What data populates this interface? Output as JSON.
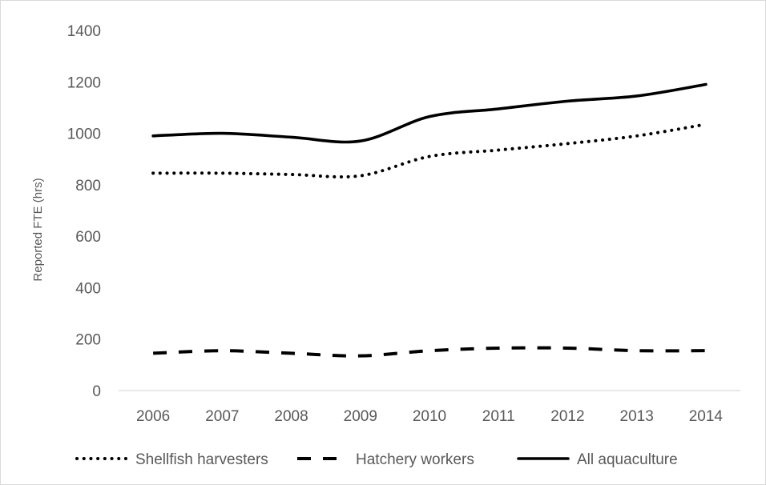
{
  "chart_data": {
    "type": "line",
    "title": "",
    "xlabel": "",
    "ylabel": "Reported FTE (hrs)",
    "x": [
      "2006",
      "2007",
      "2008",
      "2009",
      "2010",
      "2011",
      "2012",
      "2013",
      "2014"
    ],
    "ylim": [
      0,
      1400
    ],
    "yticks": [
      "0",
      "200",
      "400",
      "600",
      "800",
      "1000",
      "1200",
      "1400"
    ],
    "grid": false,
    "legend_position": "bottom",
    "series": [
      {
        "name": "Shellfish harvesters",
        "style": "dotted",
        "color": "#000000",
        "values": [
          845,
          845,
          840,
          835,
          910,
          935,
          960,
          990,
          1035
        ]
      },
      {
        "name": "Hatchery workers",
        "style": "dashed",
        "color": "#000000",
        "values": [
          145,
          155,
          145,
          135,
          155,
          165,
          165,
          155,
          155
        ]
      },
      {
        "name": "All aquaculture",
        "style": "solid",
        "color": "#000000",
        "values": [
          990,
          1000,
          985,
          970,
          1065,
          1095,
          1125,
          1145,
          1190
        ]
      }
    ]
  }
}
